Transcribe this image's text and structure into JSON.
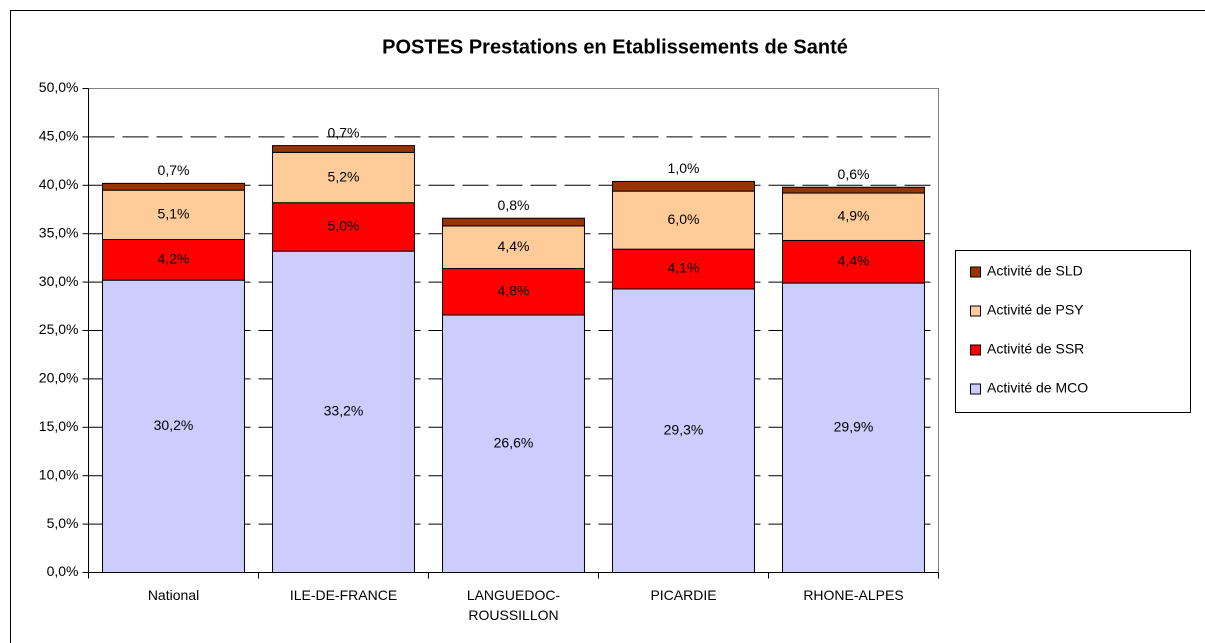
{
  "chart_data": {
    "type": "stacked_bar",
    "title": "POSTES Prestations en Etablissements de Santé",
    "categories": [
      "National",
      "ILE-DE-FRANCE",
      "LANGUEDOC-ROUSSILLON",
      "PICARDIE",
      "RHONE-ALPES"
    ],
    "series": [
      {
        "name": "Activité de MCO",
        "color": "#ccccff",
        "values": [
          30.2,
          33.2,
          26.6,
          29.3,
          29.9
        ],
        "value_labels": [
          "30,2%",
          "33,2%",
          "26,6%",
          "29,3%",
          "29,9%"
        ]
      },
      {
        "name": "Activité de SSR",
        "color": "#ff0000",
        "values": [
          4.2,
          5.0,
          4.8,
          4.1,
          4.4
        ],
        "value_labels": [
          "4,2%",
          "5,0%",
          "4,8%",
          "4,1%",
          "4,4%"
        ]
      },
      {
        "name": "Activité de PSY",
        "color": "#ffcc99",
        "values": [
          5.1,
          5.2,
          4.4,
          6.0,
          4.9
        ],
        "value_labels": [
          "5,1%",
          "5,2%",
          "4,4%",
          "6,0%",
          "4,9%"
        ]
      },
      {
        "name": "Activité de SLD",
        "color": "#993300",
        "values": [
          0.7,
          0.7,
          0.8,
          1.0,
          0.6
        ],
        "value_labels": [
          "0,7%",
          "0,7%",
          "0,8%",
          "1,0%",
          "0,6%"
        ]
      }
    ],
    "ylim": [
      0,
      50
    ],
    "yticks": [
      {
        "value": 0,
        "label": "0,0%"
      },
      {
        "value": 5,
        "label": "5,0%"
      },
      {
        "value": 10,
        "label": "10,0%"
      },
      {
        "value": 15,
        "label": "15,0%"
      },
      {
        "value": 20,
        "label": "20,0%"
      },
      {
        "value": 25,
        "label": "25,0%"
      },
      {
        "value": 30,
        "label": "30,0%"
      },
      {
        "value": 35,
        "label": "35,0%"
      },
      {
        "value": 40,
        "label": "40,0%"
      },
      {
        "value": 45,
        "label": "45,0%"
      },
      {
        "value": 50,
        "label": "50,0%"
      }
    ],
    "grid": true
  }
}
